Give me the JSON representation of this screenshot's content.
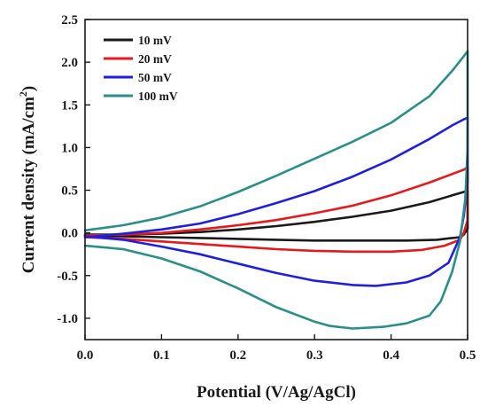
{
  "chart_data": {
    "type": "line",
    "title": "",
    "xlabel": "Potential (V/Ag/AgCl)",
    "ylabel_main": "Current density (mA/cm",
    "ylabel_sup": "2",
    "ylabel_close": ")",
    "xlim": [
      0.0,
      0.5
    ],
    "ylim": [
      -1.25,
      2.5
    ],
    "xticks": [
      0.0,
      0.1,
      0.2,
      0.3,
      0.4,
      0.5
    ],
    "xtick_labels": [
      "0.0",
      "0.1",
      "0.2",
      "0.3",
      "0.4",
      "0.5"
    ],
    "yticks": [
      -1.0,
      -0.5,
      0.0,
      0.5,
      1.0,
      1.5,
      2.0,
      2.5
    ],
    "ytick_labels": [
      "-1.0",
      "-0.5",
      "0.0",
      "0.5",
      "1.0",
      "1.5",
      "2.0",
      "2.5"
    ],
    "grid": false,
    "legend_position": "top-left",
    "series": [
      {
        "name": "10 mV",
        "color": "#1a1a1a",
        "x": [
          0.0,
          0.05,
          0.1,
          0.15,
          0.2,
          0.25,
          0.3,
          0.35,
          0.4,
          0.45,
          0.48,
          0.495,
          0.5,
          0.5,
          0.495,
          0.49,
          0.48,
          0.46,
          0.42,
          0.35,
          0.3,
          0.25,
          0.2,
          0.15,
          0.1,
          0.05,
          0.0
        ],
        "y": [
          -0.02,
          -0.02,
          -0.01,
          0.01,
          0.04,
          0.08,
          0.13,
          0.19,
          0.26,
          0.36,
          0.44,
          0.48,
          0.5,
          0.05,
          -0.02,
          -0.05,
          -0.06,
          -0.08,
          -0.09,
          -0.09,
          -0.09,
          -0.08,
          -0.07,
          -0.06,
          -0.05,
          -0.04,
          -0.03
        ]
      },
      {
        "name": "20 mV",
        "color": "#e41a1c",
        "x": [
          0.0,
          0.05,
          0.1,
          0.15,
          0.2,
          0.25,
          0.3,
          0.35,
          0.4,
          0.45,
          0.48,
          0.495,
          0.5,
          0.5,
          0.495,
          0.49,
          0.47,
          0.44,
          0.4,
          0.35,
          0.3,
          0.25,
          0.2,
          0.15,
          0.1,
          0.05,
          0.0
        ],
        "y": [
          -0.03,
          -0.02,
          0.0,
          0.04,
          0.09,
          0.15,
          0.23,
          0.32,
          0.44,
          0.59,
          0.69,
          0.74,
          0.77,
          0.15,
          0.0,
          -0.08,
          -0.15,
          -0.2,
          -0.22,
          -0.22,
          -0.21,
          -0.19,
          -0.16,
          -0.13,
          -0.1,
          -0.07,
          -0.05
        ]
      },
      {
        "name": "50 mV",
        "color": "#1f1fe0",
        "x": [
          0.0,
          0.05,
          0.1,
          0.15,
          0.2,
          0.25,
          0.3,
          0.35,
          0.4,
          0.45,
          0.48,
          0.495,
          0.5,
          0.5,
          0.495,
          0.49,
          0.475,
          0.45,
          0.42,
          0.38,
          0.35,
          0.3,
          0.25,
          0.2,
          0.15,
          0.1,
          0.05,
          0.0
        ],
        "y": [
          -0.05,
          -0.01,
          0.04,
          0.11,
          0.22,
          0.35,
          0.49,
          0.66,
          0.86,
          1.1,
          1.26,
          1.33,
          1.35,
          0.6,
          0.2,
          -0.05,
          -0.35,
          -0.5,
          -0.58,
          -0.62,
          -0.61,
          -0.56,
          -0.47,
          -0.36,
          -0.25,
          -0.16,
          -0.08,
          -0.04
        ]
      },
      {
        "name": "100 mV",
        "color": "#2a8f8a",
        "x": [
          0.0,
          0.05,
          0.1,
          0.15,
          0.2,
          0.25,
          0.3,
          0.35,
          0.4,
          0.45,
          0.48,
          0.495,
          0.5,
          0.5,
          0.497,
          0.49,
          0.48,
          0.465,
          0.45,
          0.42,
          0.39,
          0.35,
          0.32,
          0.3,
          0.25,
          0.2,
          0.15,
          0.1,
          0.05,
          0.0
        ],
        "y": [
          0.03,
          0.09,
          0.18,
          0.31,
          0.48,
          0.67,
          0.87,
          1.07,
          1.29,
          1.6,
          1.9,
          2.07,
          2.13,
          1.0,
          0.4,
          -0.1,
          -0.45,
          -0.8,
          -0.97,
          -1.06,
          -1.1,
          -1.12,
          -1.09,
          -1.04,
          -0.87,
          -0.65,
          -0.45,
          -0.3,
          -0.19,
          -0.15
        ]
      }
    ]
  }
}
